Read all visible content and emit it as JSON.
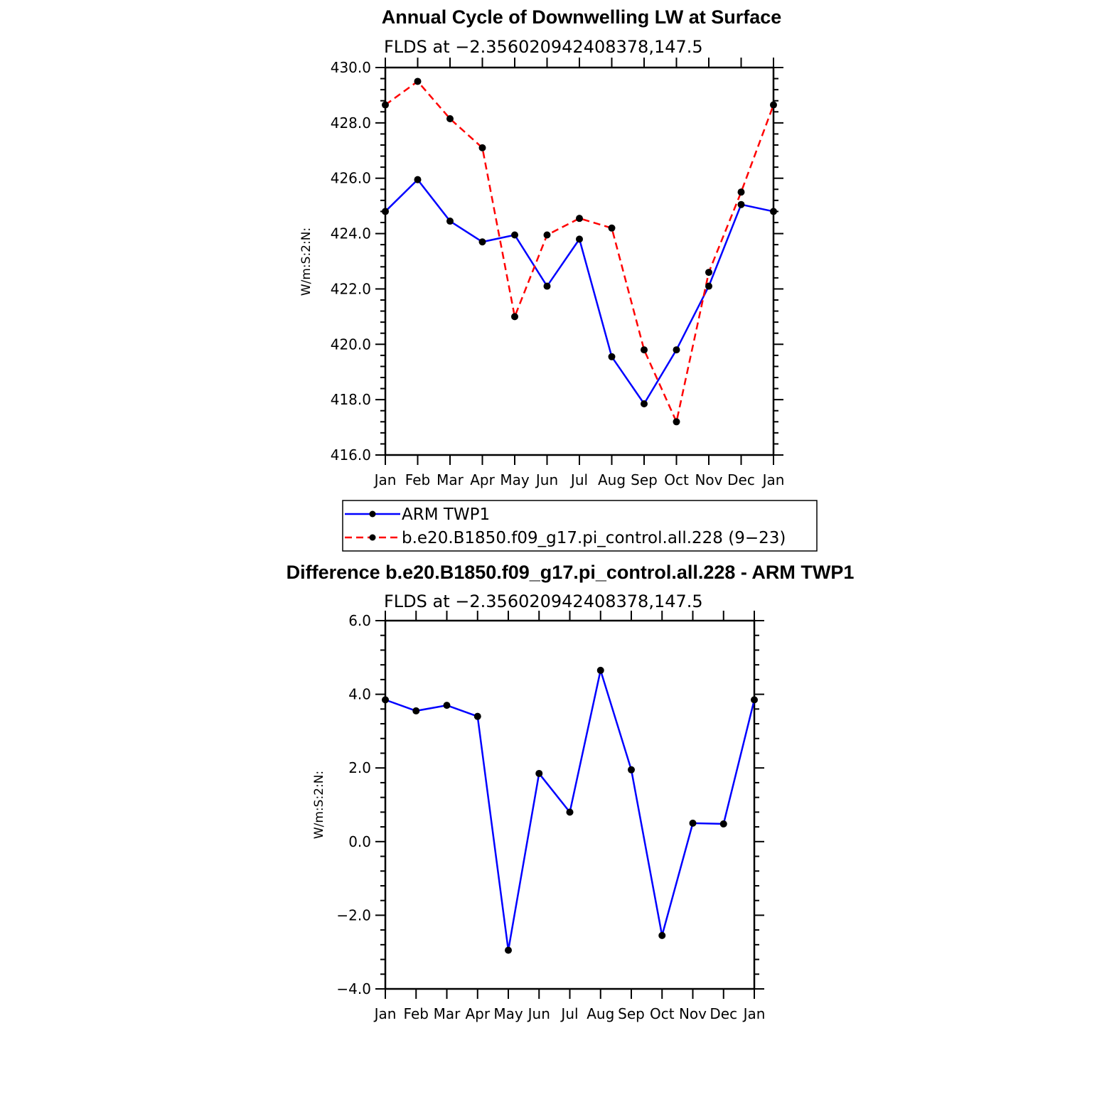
{
  "chart_data": [
    {
      "type": "line",
      "title": "Annual Cycle of Downwelling LW at Surface",
      "subtitle": "FLDS at −2.356020942408378,147.5",
      "ylabel": "W/m:S:2:N:",
      "xlabel": "",
      "ylim": [
        416,
        430
      ],
      "y_ticks": [
        "416.0",
        "418.0",
        "420.0",
        "422.0",
        "424.0",
        "426.0",
        "428.0",
        "430.0"
      ],
      "y_tick_values": [
        416,
        418,
        420,
        422,
        424,
        426,
        428,
        430
      ],
      "categories": [
        "Jan",
        "Feb",
        "Mar",
        "Apr",
        "May",
        "Jun",
        "Jul",
        "Aug",
        "Sep",
        "Oct",
        "Nov",
        "Dec",
        "Jan"
      ],
      "series": [
        {
          "name": "ARM  TWP1",
          "color": "#0000ff",
          "dash": "solid",
          "values": [
            424.8,
            425.95,
            424.45,
            423.7,
            423.95,
            422.1,
            423.8,
            419.55,
            417.85,
            419.8,
            422.1,
            425.05,
            424.8
          ]
        },
        {
          "name": "b.e20.B1850.f09_g17.pi_control.all.228 (9−23)",
          "color": "#ff0000",
          "dash": "dashed",
          "values": [
            428.65,
            429.5,
            428.15,
            427.1,
            421.0,
            423.95,
            424.55,
            424.2,
            419.8,
            417.2,
            422.6,
            425.5,
            428.65
          ]
        }
      ],
      "grid": false,
      "legend_position": "below"
    },
    {
      "type": "line",
      "title": "Difference b.e20.B1850.f09_g17.pi_control.all.228 - ARM TWP1",
      "subtitle": "FLDS at −2.356020942408378,147.5",
      "ylabel": "W/m:S:2:N:",
      "xlabel": "",
      "ylim": [
        -4,
        6
      ],
      "y_ticks": [
        "−4.0",
        "−2.0",
        "0.0",
        "2.0",
        "4.0",
        "6.0"
      ],
      "y_tick_values": [
        -4,
        -2,
        0,
        2,
        4,
        6
      ],
      "categories": [
        "Jan",
        "Feb",
        "Mar",
        "Apr",
        "May",
        "Jun",
        "Jul",
        "Aug",
        "Sep",
        "Oct",
        "Nov",
        "Dec",
        "Jan"
      ],
      "series": [
        {
          "color": "#0000ff",
          "dash": "solid",
          "values": [
            3.85,
            3.55,
            3.7,
            3.4,
            -2.95,
            1.85,
            0.8,
            4.65,
            1.95,
            -2.55,
            0.5,
            0.48,
            3.85
          ]
        }
      ],
      "grid": false
    }
  ]
}
